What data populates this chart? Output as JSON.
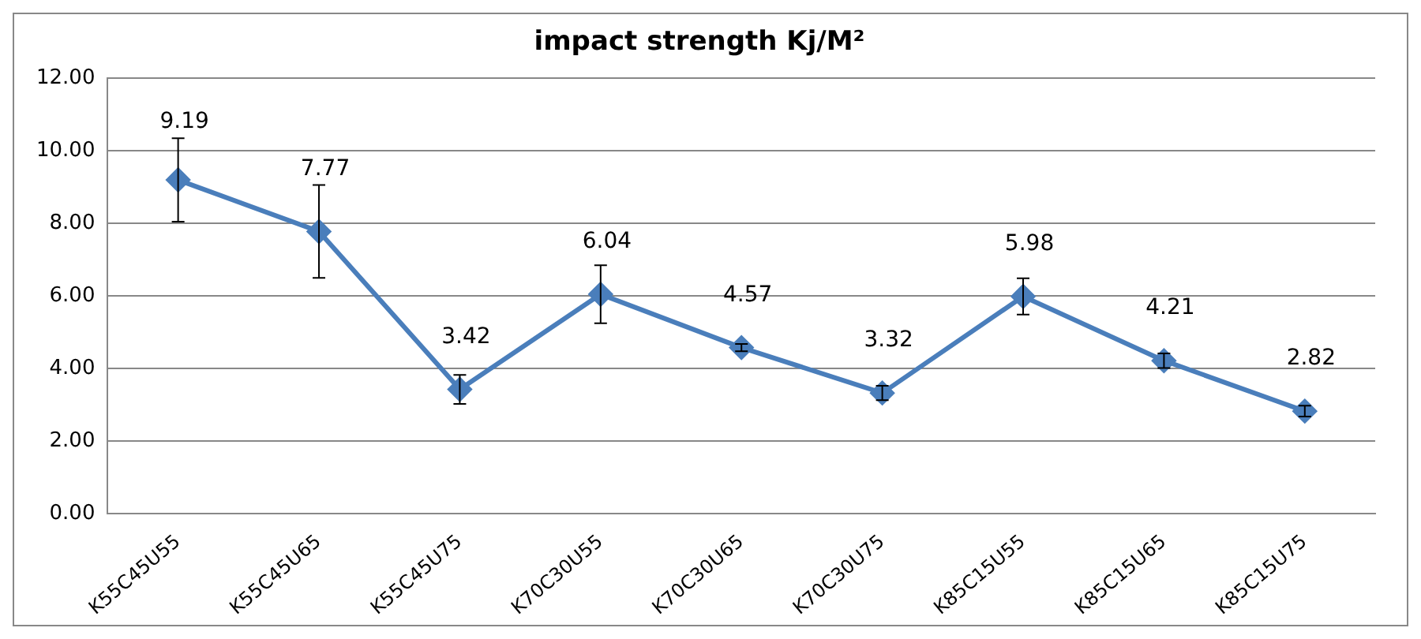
{
  "chart_data": {
    "type": "line",
    "title": "impact strength Kj/M²",
    "categories": [
      "K55C45U55",
      "K55C45U65",
      "K55C45U75",
      "K70C30U55",
      "K70C30U65",
      "K70C30U75",
      "K85C15U55",
      "K85C15U65",
      "K85C15U75"
    ],
    "series": [
      {
        "color": "#4a7ebb",
        "values": [
          9.19,
          7.77,
          3.42,
          6.04,
          4.57,
          3.32,
          5.98,
          4.21,
          2.82
        ],
        "errors": [
          1.15,
          1.28,
          0.4,
          0.8,
          0.1,
          0.2,
          0.5,
          0.2,
          0.15
        ]
      }
    ],
    "ylim": [
      0,
      12
    ],
    "yticks": [
      {
        "value": 0,
        "label": "0.00"
      },
      {
        "value": 2,
        "label": "2.00"
      },
      {
        "value": 4,
        "label": "4.00"
      },
      {
        "value": 6,
        "label": "6.00"
      },
      {
        "value": 8,
        "label": "8.00"
      },
      {
        "value": 10,
        "label": "10.00"
      },
      {
        "value": 12,
        "label": "12.00"
      }
    ],
    "grid": "y",
    "marker": "diamond",
    "line_style": "solid",
    "data_labels": true,
    "legend": false
  }
}
